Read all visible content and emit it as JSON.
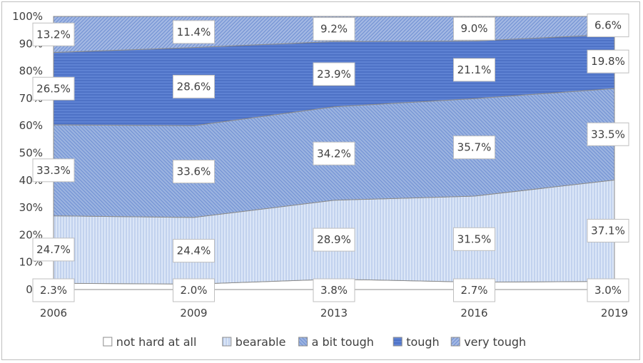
{
  "chart_data": {
    "type": "area",
    "stacked": "percent",
    "categories": [
      "2006",
      "2009",
      "2013",
      "2016",
      "2019"
    ],
    "y_ticks": [
      "0%",
      "10%",
      "20%",
      "30%",
      "40%",
      "50%",
      "60%",
      "70%",
      "80%",
      "90%",
      "100%"
    ],
    "ylim": [
      0,
      100
    ],
    "grid": false,
    "legend_position": "bottom",
    "title": "",
    "xlabel": "",
    "ylabel": "",
    "series": [
      {
        "name": "not hard at all",
        "values": [
          2.3,
          2.0,
          3.8,
          2.7,
          3.0
        ],
        "labels": [
          "2.3%",
          "2.0%",
          "3.8%",
          "2.7%",
          "3.0%"
        ],
        "color": "#ffffff",
        "pattern": "none"
      },
      {
        "name": "bearable",
        "values": [
          24.7,
          24.4,
          28.9,
          31.5,
          37.1
        ],
        "labels": [
          "24.7%",
          "24.4%",
          "28.9%",
          "31.5%",
          "37.1%"
        ],
        "color": "#dbe6f7",
        "pattern": "vertical-lines"
      },
      {
        "name": "a bit tough",
        "values": [
          33.3,
          33.6,
          34.2,
          35.7,
          33.5
        ],
        "labels": [
          "33.3%",
          "33.6%",
          "34.2%",
          "35.7%",
          "33.5%"
        ],
        "color": "#8eaadb",
        "pattern": "backward-diagonal"
      },
      {
        "name": "tough",
        "values": [
          26.5,
          28.6,
          23.9,
          21.1,
          19.8
        ],
        "labels": [
          "26.5%",
          "28.6%",
          "23.9%",
          "21.1%",
          "19.8%"
        ],
        "color": "#5b7fd1",
        "pattern": "horizontal-lines"
      },
      {
        "name": "very tough",
        "values": [
          13.2,
          11.4,
          9.2,
          9.0,
          6.6
        ],
        "labels": [
          "13.2%",
          "11.4%",
          "9.2%",
          "9.0%",
          "6.6%"
        ],
        "color": "#8faadc",
        "pattern": "forward-diagonal"
      }
    ]
  }
}
